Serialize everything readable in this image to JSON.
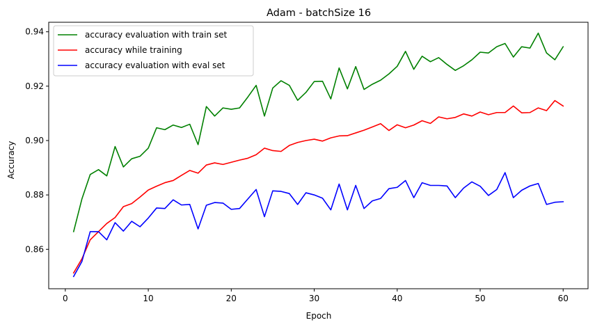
{
  "chart_data": {
    "type": "line",
    "title": "Adam - batchSize 16",
    "xlabel": "Epoch",
    "ylabel": "Accuracy",
    "xlim": [
      -2,
      63
    ],
    "ylim": [
      0.8455,
      0.9435
    ],
    "xticks": [
      0,
      10,
      20,
      30,
      40,
      50,
      60
    ],
    "yticks": [
      0.86,
      0.88,
      0.9,
      0.92,
      0.94
    ],
    "xtick_labels": [
      "0",
      "10",
      "20",
      "30",
      "40",
      "50",
      "60"
    ],
    "ytick_labels": [
      "0.86",
      "0.88",
      "0.90",
      "0.92",
      "0.94"
    ],
    "grid": false,
    "legend_position": "top-left",
    "x": [
      1,
      2,
      3,
      4,
      5,
      6,
      7,
      8,
      9,
      10,
      11,
      12,
      13,
      14,
      15,
      16,
      17,
      18,
      19,
      20,
      21,
      22,
      23,
      24,
      25,
      26,
      27,
      28,
      29,
      30,
      31,
      32,
      33,
      34,
      35,
      36,
      37,
      38,
      39,
      40,
      41,
      42,
      43,
      44,
      45,
      46,
      47,
      48,
      49,
      50,
      51,
      52,
      53,
      54,
      55,
      56,
      57,
      58,
      59,
      60
    ],
    "series": [
      {
        "name": "accuracy evaluation with train set",
        "color": "#008000",
        "values": [
          0.8665,
          0.8785,
          0.8875,
          0.8893,
          0.887,
          0.8978,
          0.8903,
          0.8933,
          0.8942,
          0.8972,
          0.9047,
          0.904,
          0.9057,
          0.9048,
          0.906,
          0.8985,
          0.9125,
          0.909,
          0.912,
          0.9115,
          0.912,
          0.916,
          0.9203,
          0.909,
          0.9193,
          0.922,
          0.9203,
          0.9148,
          0.9177,
          0.9217,
          0.9218,
          0.9153,
          0.9267,
          0.919,
          0.9272,
          0.9188,
          0.9207,
          0.9222,
          0.9245,
          0.9273,
          0.9328,
          0.9262,
          0.931,
          0.929,
          0.9305,
          0.928,
          0.9258,
          0.9275,
          0.9297,
          0.9325,
          0.9322,
          0.9345,
          0.9357,
          0.9307,
          0.9345,
          0.934,
          0.9395,
          0.9322,
          0.9297,
          0.9345
        ]
      },
      {
        "name": "accuracy while training",
        "color": "#ff0000",
        "values": [
          0.8513,
          0.8565,
          0.8635,
          0.8665,
          0.8695,
          0.8717,
          0.8757,
          0.8768,
          0.8792,
          0.8818,
          0.8832,
          0.8845,
          0.8853,
          0.8872,
          0.889,
          0.888,
          0.891,
          0.8918,
          0.8912,
          0.892,
          0.8928,
          0.8935,
          0.8948,
          0.8972,
          0.8963,
          0.896,
          0.8982,
          0.8993,
          0.9,
          0.9005,
          0.8998,
          0.901,
          0.9017,
          0.9018,
          0.9028,
          0.9038,
          0.905,
          0.9062,
          0.9037,
          0.9058,
          0.9047,
          0.9057,
          0.9073,
          0.9063,
          0.9087,
          0.908,
          0.9085,
          0.9098,
          0.909,
          0.9105,
          0.9095,
          0.9103,
          0.9103,
          0.9127,
          0.9102,
          0.9103,
          0.912,
          0.911,
          0.9147,
          0.9127
        ]
      },
      {
        "name": "accuracy evaluation with eval set",
        "color": "#0000ff",
        "values": [
          0.85,
          0.8555,
          0.8665,
          0.8665,
          0.8635,
          0.8698,
          0.8667,
          0.8703,
          0.8683,
          0.8715,
          0.8752,
          0.875,
          0.8782,
          0.8763,
          0.8765,
          0.8675,
          0.8762,
          0.8772,
          0.877,
          0.8747,
          0.875,
          0.8785,
          0.882,
          0.872,
          0.8815,
          0.8813,
          0.8805,
          0.8765,
          0.8808,
          0.88,
          0.8788,
          0.8745,
          0.884,
          0.8745,
          0.8835,
          0.875,
          0.8778,
          0.8787,
          0.8823,
          0.8828,
          0.8853,
          0.879,
          0.8845,
          0.8835,
          0.8835,
          0.8833,
          0.879,
          0.8825,
          0.8848,
          0.8832,
          0.8798,
          0.882,
          0.8882,
          0.879,
          0.8817,
          0.8833,
          0.8842,
          0.8765,
          0.8773,
          0.8775
        ]
      }
    ]
  }
}
